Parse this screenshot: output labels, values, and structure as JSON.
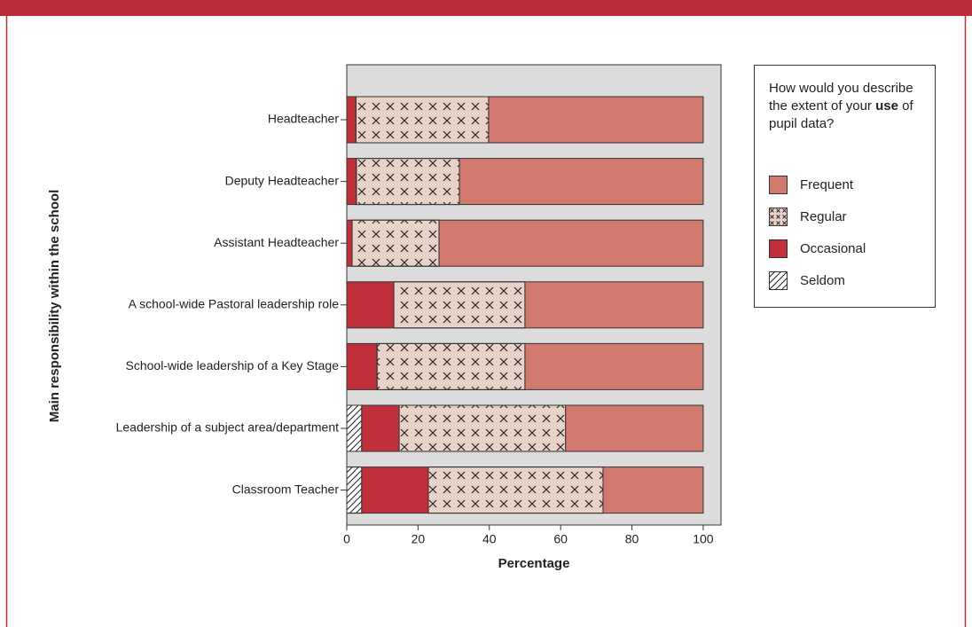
{
  "chart_data": {
    "type": "bar",
    "orientation": "horizontal",
    "stacked": true,
    "ylabel": "Main responsibility within the school",
    "xlabel": "Percentage",
    "categories": [
      "Headteacher",
      "Deputy Headteacher",
      "Assistant Headteacher",
      "A school-wide Pastoral leadership role",
      "School-wide leadership of a Key Stage",
      "Leadership of a subject area/department",
      "Classroom Teacher"
    ],
    "series": [
      {
        "name": "Frequent",
        "color": "#d27a6e",
        "pattern": "none",
        "values": [
          60.2,
          68.4,
          74.1,
          50,
          50,
          38.6,
          28.1
        ]
      },
      {
        "name": "Regular",
        "color": "#e9d2c8",
        "pattern": "cross",
        "values": [
          37.2,
          28.9,
          24.4,
          36.8,
          41.5,
          46.7,
          49
        ]
      },
      {
        "name": "Occasional",
        "color": "#c0303a",
        "pattern": "none",
        "values": [
          2.6,
          2.7,
          1.5,
          13.2,
          8.5,
          10.5,
          18.7
        ]
      },
      {
        "name": "Seldom",
        "color": "#ffffff",
        "pattern": "diagonal",
        "values": [
          0,
          0,
          0,
          0,
          0,
          4.2,
          4.2
        ]
      }
    ],
    "xlim": [
      0,
      105
    ],
    "xticks": [
      0,
      20,
      40,
      60,
      80,
      100
    ],
    "legend_title": [
      {
        "text": "How would you describe the extent of your ",
        "bold": false
      },
      {
        "text": "use",
        "bold": true
      },
      {
        "text": " of pupil data?",
        "bold": false
      }
    ],
    "legend_position": "right",
    "plot_background": "#dcdcdc"
  }
}
